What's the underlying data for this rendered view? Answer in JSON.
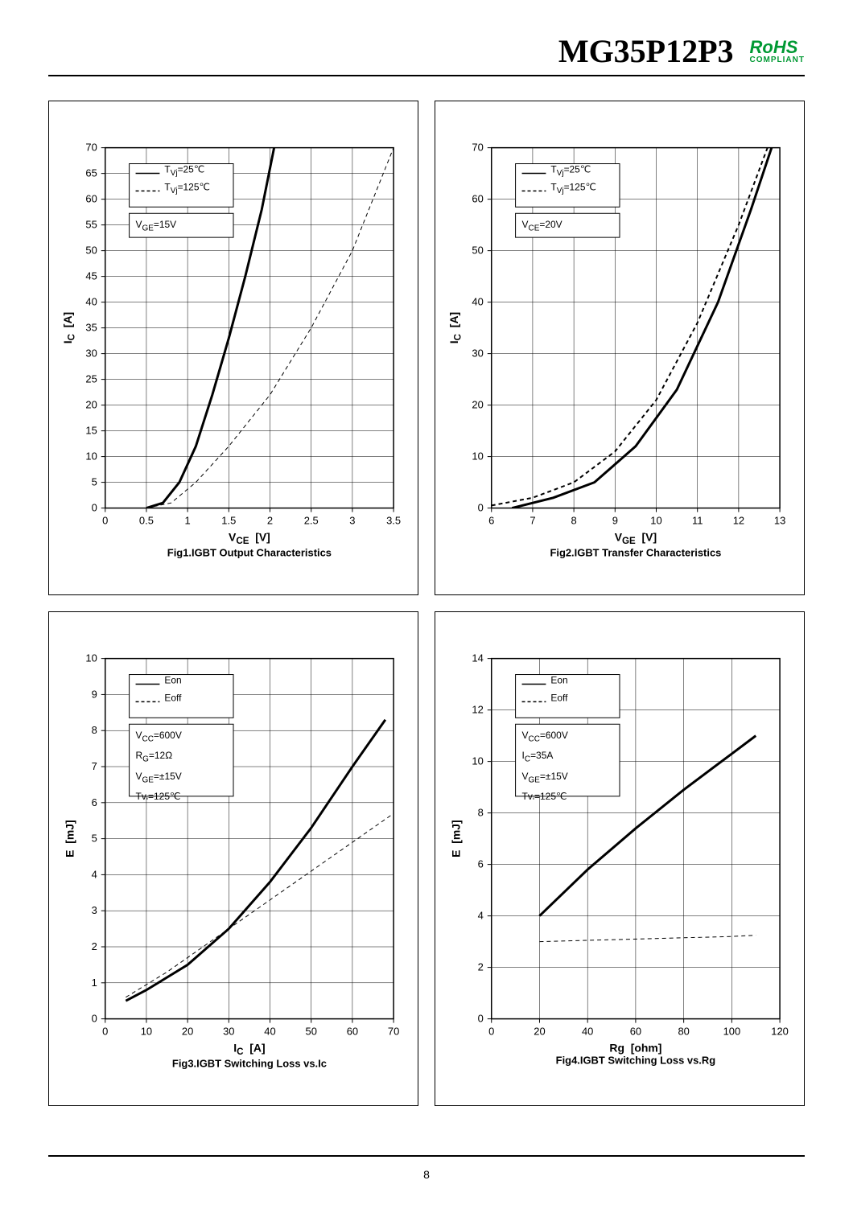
{
  "header": {
    "part_number": "MG35P12P3",
    "rohs_top": "RoHS",
    "rohs_bottom": "COMPLIANT"
  },
  "page_number": "8",
  "colors": {
    "text": "#000000",
    "grid": "#000000",
    "series_solid": "#000000",
    "series_dash": "#000000",
    "rohs": "#009933",
    "background": "#ffffff"
  },
  "fig1": {
    "type": "line",
    "caption": "Fig1.IGBT Output Characteristics",
    "xlabel_html": "V<sub>CE</sub>&nbsp;&nbsp;[V]",
    "ylabel_html": "I<sub>C</sub>&nbsp;&nbsp;[A]",
    "xlim": [
      0,
      3.5
    ],
    "ylim": [
      0,
      70
    ],
    "xticks": [
      0,
      0.5,
      1,
      1.5,
      2,
      2.5,
      3,
      3.5
    ],
    "yticks": [
      0,
      5,
      10,
      15,
      20,
      25,
      30,
      35,
      40,
      45,
      50,
      55,
      60,
      65,
      70
    ],
    "xtick_labels": [
      "0",
      "0.5",
      "1",
      "1.5",
      "2",
      "2.5",
      "3",
      "3.5"
    ],
    "ytick_labels": [
      "0",
      "5",
      "10",
      "15",
      "20",
      "25",
      "30",
      "35",
      "40",
      "45",
      "50",
      "55",
      "60",
      "65",
      "70"
    ],
    "legend1": {
      "items": [
        {
          "label_html": "T<sub>Vj</sub>=25℃",
          "dash": false
        },
        {
          "label_html": "T<sub>Vj</sub>=125℃",
          "dash": true
        }
      ]
    },
    "legend2": {
      "text_html": "V<sub>GE</sub>=15V"
    },
    "series": [
      {
        "dash": false,
        "width": 3,
        "data": [
          [
            0.5,
            0
          ],
          [
            0.7,
            1
          ],
          [
            0.9,
            5
          ],
          [
            1.1,
            12
          ],
          [
            1.3,
            22
          ],
          [
            1.5,
            33
          ],
          [
            1.7,
            45
          ],
          [
            1.9,
            58
          ],
          [
            2.05,
            70
          ]
        ]
      },
      {
        "dash": true,
        "width": 1,
        "data": [
          [
            0.5,
            0
          ],
          [
            0.8,
            1
          ],
          [
            1.1,
            5
          ],
          [
            1.5,
            12
          ],
          [
            2.0,
            22
          ],
          [
            2.5,
            35
          ],
          [
            3.0,
            50
          ],
          [
            3.5,
            70
          ]
        ]
      }
    ]
  },
  "fig2": {
    "type": "line",
    "caption": "Fig2.IGBT Transfer Characteristics",
    "xlabel_html": "V<sub>GE</sub>&nbsp;&nbsp;[V]",
    "ylabel_html": "I<sub>C</sub>&nbsp;&nbsp;[A]",
    "xlim": [
      6,
      13
    ],
    "ylim": [
      0,
      70
    ],
    "xticks": [
      6,
      7,
      8,
      9,
      10,
      11,
      12,
      13
    ],
    "yticks": [
      0,
      10,
      20,
      30,
      40,
      50,
      60,
      70
    ],
    "xtick_labels": [
      "6",
      "7",
      "8",
      "9",
      "10",
      "11",
      "12",
      "13"
    ],
    "ytick_labels": [
      "0",
      "10",
      "20",
      "30",
      "40",
      "50",
      "60",
      "70"
    ],
    "legend1": {
      "items": [
        {
          "label_html": "T<sub>Vj</sub>=25℃",
          "dash": false
        },
        {
          "label_html": "T<sub>Vj</sub>=125℃",
          "dash": true
        }
      ]
    },
    "legend2": {
      "text_html": "V<sub>CE</sub>=20V"
    },
    "series": [
      {
        "dash": false,
        "width": 3,
        "data": [
          [
            6.5,
            0
          ],
          [
            7.5,
            2
          ],
          [
            8.5,
            5
          ],
          [
            9.5,
            12
          ],
          [
            10.5,
            23
          ],
          [
            11.5,
            40
          ],
          [
            12.3,
            58
          ],
          [
            12.8,
            70
          ]
        ]
      },
      {
        "dash": true,
        "width": 2,
        "data": [
          [
            6,
            0.5
          ],
          [
            7,
            2
          ],
          [
            8,
            5
          ],
          [
            9,
            11
          ],
          [
            10,
            21
          ],
          [
            11,
            36
          ],
          [
            12,
            55
          ],
          [
            12.7,
            70
          ]
        ]
      }
    ]
  },
  "fig3": {
    "type": "line",
    "caption": "Fig3.IGBT Switching Loss vs.Ic",
    "xlabel_html": "I<sub>C</sub>&nbsp;&nbsp;[A]",
    "ylabel_html": "E&nbsp;&nbsp;[mJ]",
    "xlim": [
      0,
      70
    ],
    "ylim": [
      0,
      10
    ],
    "xticks": [
      0,
      10,
      20,
      30,
      40,
      50,
      60,
      70
    ],
    "yticks": [
      0,
      1,
      2,
      3,
      4,
      5,
      6,
      7,
      8,
      9,
      10
    ],
    "xtick_labels": [
      "0",
      "10",
      "20",
      "30",
      "40",
      "50",
      "60",
      "70"
    ],
    "ytick_labels": [
      "0",
      "1",
      "2",
      "3",
      "4",
      "5",
      "6",
      "7",
      "8",
      "9",
      "10"
    ],
    "legend1": {
      "items": [
        {
          "label_html": "Eon",
          "dash": false
        },
        {
          "label_html": "Eoff",
          "dash": true
        }
      ]
    },
    "legend2": {
      "text_html": "V<sub>CC</sub>=600V<br>R<sub>G</sub>=12Ω<br>V<sub>GE</sub>=±15V<br>Tv<sub>j</sub>=125℃"
    },
    "series": [
      {
        "dash": false,
        "width": 3,
        "data": [
          [
            5,
            0.5
          ],
          [
            10,
            0.8
          ],
          [
            20,
            1.5
          ],
          [
            30,
            2.5
          ],
          [
            40,
            3.8
          ],
          [
            50,
            5.3
          ],
          [
            60,
            7.0
          ],
          [
            68,
            8.3
          ]
        ]
      },
      {
        "dash": true,
        "width": 1,
        "data": [
          [
            5,
            0.6
          ],
          [
            15,
            1.3
          ],
          [
            25,
            2.1
          ],
          [
            35,
            2.9
          ],
          [
            45,
            3.7
          ],
          [
            55,
            4.5
          ],
          [
            65,
            5.3
          ],
          [
            70,
            5.7
          ]
        ]
      }
    ]
  },
  "fig4": {
    "type": "line",
    "caption": "Fig4.IGBT Switching Loss vs.Rg",
    "xlabel_html": "Rg&nbsp;&nbsp;[ohm]",
    "ylabel_html": "E&nbsp;&nbsp;[mJ]",
    "xlim": [
      0,
      120
    ],
    "ylim": [
      0,
      14
    ],
    "xticks": [
      0,
      20,
      40,
      60,
      80,
      100,
      120
    ],
    "yticks": [
      0,
      2,
      4,
      6,
      8,
      10,
      12,
      14
    ],
    "xtick_labels": [
      "0",
      "20",
      "40",
      "60",
      "80",
      "100",
      "120"
    ],
    "ytick_labels": [
      "0",
      "2",
      "4",
      "6",
      "8",
      "10",
      "12",
      "14"
    ],
    "legend1": {
      "items": [
        {
          "label_html": "Eon",
          "dash": false
        },
        {
          "label_html": "Eoff",
          "dash": true
        }
      ]
    },
    "legend2": {
      "text_html": "V<sub>CC</sub>=600V<br>I<sub>C</sub>=35A<br>V<sub>GE</sub>=±15V<br>Tv<sub>j</sub>=125℃"
    },
    "series": [
      {
        "dash": false,
        "width": 3,
        "data": [
          [
            20,
            4
          ],
          [
            40,
            5.8
          ],
          [
            60,
            7.4
          ],
          [
            80,
            8.9
          ],
          [
            100,
            10.3
          ],
          [
            110,
            11
          ]
        ]
      },
      {
        "dash": true,
        "width": 1,
        "data": [
          [
            20,
            3
          ],
          [
            40,
            3.05
          ],
          [
            60,
            3.1
          ],
          [
            80,
            3.15
          ],
          [
            100,
            3.2
          ],
          [
            110,
            3.25
          ]
        ]
      }
    ]
  }
}
